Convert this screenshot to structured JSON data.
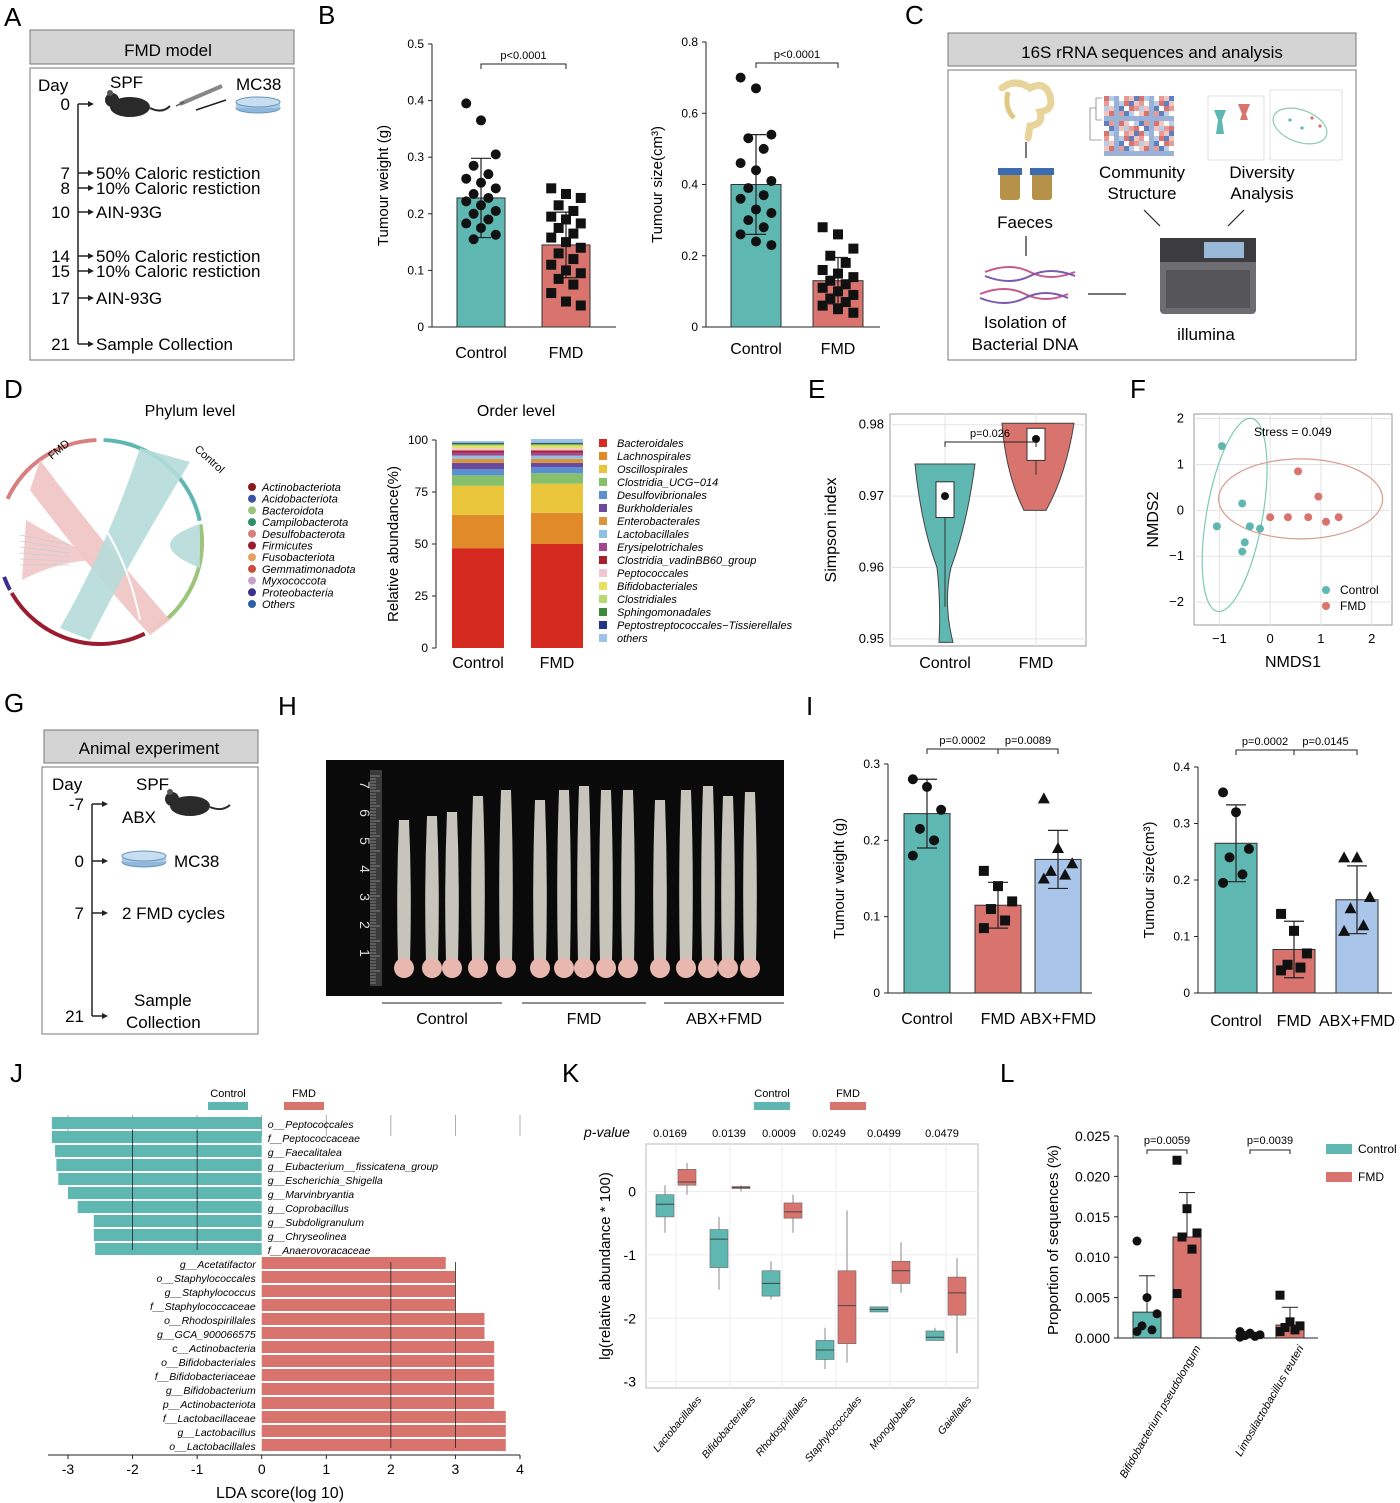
{
  "panel_letters": [
    "A",
    "B",
    "C",
    "D",
    "E",
    "F",
    "G",
    "H",
    "I",
    "J",
    "K",
    "L"
  ],
  "colors": {
    "control": "#5fb7b2",
    "fmd": "#d9736e",
    "abx": "#a9c6ea",
    "header_bg": "#d4d4d4"
  },
  "panelA": {
    "header": "FMD model",
    "day_label": "Day",
    "spf": "SPF",
    "mc38": "MC38",
    "steps": [
      {
        "day": "0",
        "text": ""
      },
      {
        "day": "7",
        "text": "50% Caloric restiction"
      },
      {
        "day": "8",
        "text": "10% Caloric restiction"
      },
      {
        "day": "10",
        "text": "AIN-93G"
      },
      {
        "day": "14",
        "text": "50% Caloric restiction"
      },
      {
        "day": "15",
        "text": "10% Caloric restiction"
      },
      {
        "day": "17",
        "text": "AIN-93G"
      },
      {
        "day": "21",
        "text": "Sample Collection"
      }
    ]
  },
  "panelC": {
    "header": "16S rRNA sequences and analysis",
    "faeces": "Faeces",
    "isolation": [
      "Isolation of",
      "Bacterial DNA"
    ],
    "community": [
      "Community",
      "Structure"
    ],
    "diversity": [
      "Diversity",
      "Analysis"
    ],
    "illumina": "illumina"
  },
  "panelD": {
    "phylum_title": "Phylum level",
    "order_title": "Order level",
    "chord_fmd": "FMD",
    "chord_control": "Control",
    "phylum_legend": [
      {
        "name": "Actinobacteriota",
        "color": "#8b1a1a"
      },
      {
        "name": "Acidobacteriota",
        "color": "#3b4ea8"
      },
      {
        "name": "Bacteroidota",
        "color": "#9cc47a"
      },
      {
        "name": "Campilobacterota",
        "color": "#2f8f6a"
      },
      {
        "name": "Desulfobacterota",
        "color": "#d88080"
      },
      {
        "name": "Firmicutes",
        "color": "#9b1c2e"
      },
      {
        "name": "Fusobacteriota",
        "color": "#e3a060"
      },
      {
        "name": "Gemmatimonadota",
        "color": "#c94e3c"
      },
      {
        "name": "Myxococcota",
        "color": "#c9a0c9"
      },
      {
        "name": "Proteobacteria",
        "color": "#3b2f8f"
      },
      {
        "name": "Others",
        "color": "#2d5fa6"
      }
    ],
    "order_legend": [
      {
        "name": "Bacteroidales",
        "color": "#d42a1f"
      },
      {
        "name": "Lachnospirales",
        "color": "#e08a2a"
      },
      {
        "name": "Oscillospirales",
        "color": "#e8c53a"
      },
      {
        "name": "Clostridia_UCG−014",
        "color": "#86c06a"
      },
      {
        "name": "Desulfovibrionales",
        "color": "#5a8fd0"
      },
      {
        "name": "Burkholderiales",
        "color": "#6a4a9e"
      },
      {
        "name": "Enterobacterales",
        "color": "#d9953a"
      },
      {
        "name": "Lactobacillales",
        "color": "#8fc0e8"
      },
      {
        "name": "Erysipelotrichales",
        "color": "#a4488e"
      },
      {
        "name": "Clostridia_vadinBB60_group",
        "color": "#a8222e"
      },
      {
        "name": "Peptococcales",
        "color": "#f0c6d0"
      },
      {
        "name": "Bifidobacteriales",
        "color": "#e8e060"
      },
      {
        "name": "Clostridiales",
        "color": "#b8d870"
      },
      {
        "name": "Sphingomonadales",
        "color": "#3f8a3a"
      },
      {
        "name": "Peptostreptococcales−Tissierellales",
        "color": "#22348a"
      },
      {
        "name": "others",
        "color": "#9cc4e8"
      }
    ]
  },
  "panelG": {
    "header": "Animal experiment",
    "day_label": "Day",
    "spf": "SPF",
    "steps": [
      {
        "day": "-7",
        "text": "ABX"
      },
      {
        "day": "0",
        "text": "MC38"
      },
      {
        "day": "7",
        "text": "2 FMD cycles"
      },
      {
        "day": "21",
        "text": "Sample"
      }
    ],
    "collection": "Collection"
  },
  "panelH": {
    "groups": [
      "Control",
      "FMD",
      "ABX+FMD"
    ],
    "ruler": [
      "7",
      "6",
      "5",
      "4",
      "3",
      "2",
      "1"
    ]
  },
  "chart_data": [
    {
      "id": "B-weight",
      "type": "bar",
      "categories": [
        "Control",
        "FMD"
      ],
      "values": [
        0.228,
        0.145
      ],
      "sd": [
        0.07,
        0.058
      ],
      "ylabel": "Tumour weight (g)",
      "ylim": [
        0,
        0.5
      ],
      "yticks": [
        "0",
        "0.1",
        "0.2",
        "0.3",
        "0.4",
        "0.5"
      ],
      "pvalues": [
        "p<0.0001"
      ],
      "points": [
        [
          0.395,
          0.365,
          0.305,
          0.285,
          0.27,
          0.262,
          0.255,
          0.245,
          0.235,
          0.228,
          0.222,
          0.215,
          0.205,
          0.2,
          0.19,
          0.183,
          0.175,
          0.163,
          0.155
        ],
        [
          0.245,
          0.235,
          0.228,
          0.215,
          0.205,
          0.195,
          0.19,
          0.183,
          0.175,
          0.165,
          0.158,
          0.15,
          0.14,
          0.13,
          0.12,
          0.11,
          0.1,
          0.095,
          0.085,
          0.075,
          0.06,
          0.045,
          0.038
        ]
      ]
    },
    {
      "id": "B-size",
      "type": "bar",
      "categories": [
        "Control",
        "FMD"
      ],
      "values": [
        0.4,
        0.13
      ],
      "sd": [
        0.14,
        0.065
      ],
      "ylabel": "Tumour size(cm³)",
      "ylim": [
        0,
        0.8
      ],
      "yticks": [
        "0",
        "0.2",
        "0.4",
        "0.6",
        "0.8"
      ],
      "pvalues": [
        "p<0.0001"
      ],
      "points": [
        [
          0.7,
          0.67,
          0.54,
          0.53,
          0.5,
          0.46,
          0.44,
          0.41,
          0.39,
          0.37,
          0.36,
          0.33,
          0.32,
          0.3,
          0.28,
          0.26,
          0.24,
          0.23
        ],
        [
          0.28,
          0.26,
          0.22,
          0.2,
          0.18,
          0.16,
          0.15,
          0.14,
          0.13,
          0.12,
          0.11,
          0.1,
          0.09,
          0.08,
          0.07,
          0.06,
          0.05,
          0.04
        ]
      ]
    },
    {
      "id": "D-order",
      "type": "bar",
      "stacked": true,
      "categories": [
        "Control",
        "FMD"
      ],
      "ylabel": "Relative abundance(%)",
      "ylim": [
        0,
        100
      ],
      "yticks": [
        "0",
        "25",
        "50",
        "75",
        "100"
      ],
      "series_values": [
        [
          48,
          50
        ],
        [
          16,
          15
        ],
        [
          14,
          14
        ],
        [
          5,
          5
        ],
        [
          3,
          3
        ],
        [
          3,
          2
        ],
        [
          2,
          2
        ],
        [
          1.5,
          1.5
        ],
        [
          1.5,
          1.5
        ],
        [
          1,
          1
        ],
        [
          1,
          1
        ],
        [
          1,
          1
        ],
        [
          0.8,
          0.8
        ],
        [
          0.5,
          0.5
        ],
        [
          0.4,
          0.4
        ],
        [
          0.8,
          1.8
        ]
      ]
    },
    {
      "id": "E",
      "type": "violin",
      "categories": [
        "Control",
        "FMD"
      ],
      "median": [
        0.97,
        0.978
      ],
      "ylabel": "Simpson index",
      "ylim": [
        0.949,
        0.9815
      ],
      "yticks": [
        "0.95",
        "0.96",
        "0.97",
        "0.98"
      ],
      "pvalues": [
        "p=0.026"
      ],
      "box": [
        [
          0.967,
          0.972
        ],
        [
          0.975,
          0.9795
        ]
      ],
      "range": [
        [
          0.9495,
          0.9745
        ],
        [
          0.968,
          0.98
        ]
      ]
    },
    {
      "id": "F",
      "type": "scatter",
      "xlabel": "NMDS1",
      "ylabel": "NMDS2",
      "xlim": [
        -1.5,
        2.4
      ],
      "ylim": [
        -2.5,
        2.1
      ],
      "xticks": [
        "−1",
        "0",
        "1",
        "2"
      ],
      "yticks": [
        "−2",
        "−1",
        "0",
        "1",
        "2"
      ],
      "annotation": "Stress = 0.049",
      "series": [
        {
          "name": "Control",
          "points": [
            [
              -0.95,
              1.4
            ],
            [
              -0.55,
              0.15
            ],
            [
              -0.4,
              -0.35
            ],
            [
              -0.2,
              -0.4
            ],
            [
              -0.5,
              -0.7
            ],
            [
              -0.55,
              -0.9
            ],
            [
              -1.05,
              -0.35
            ]
          ]
        },
        {
          "name": "FMD",
          "points": [
            [
              0.55,
              0.85
            ],
            [
              0.95,
              0.3
            ],
            [
              0.35,
              -0.15
            ],
            [
              0.75,
              -0.15
            ],
            [
              1.35,
              -0.15
            ],
            [
              1.1,
              -0.25
            ],
            [
              0.0,
              -0.15
            ]
          ]
        }
      ]
    },
    {
      "id": "I-weight",
      "type": "bar",
      "categories": [
        "Control",
        "FMD",
        "ABX+FMD"
      ],
      "values": [
        0.235,
        0.115,
        0.175
      ],
      "sd": [
        0.045,
        0.03,
        0.038
      ],
      "ylabel": "Tumour weight (g)",
      "ylim": [
        0,
        0.3
      ],
      "yticks": [
        "0",
        "0.1",
        "0.2",
        "0.3"
      ],
      "pvalues": [
        "p=0.0002",
        "p=0.0089"
      ],
      "points": [
        [
          0.28,
          0.27,
          0.24,
          0.215,
          0.2,
          0.18
        ],
        [
          0.16,
          0.14,
          0.12,
          0.11,
          0.095,
          0.085
        ],
        [
          0.255,
          0.19,
          0.17,
          0.16,
          0.155,
          0.15
        ]
      ]
    },
    {
      "id": "I-size",
      "type": "bar",
      "categories": [
        "Control",
        "FMD",
        "ABX+FMD"
      ],
      "values": [
        0.265,
        0.077,
        0.165
      ],
      "sd": [
        0.068,
        0.05,
        0.06
      ],
      "ylabel": "Tumour size(cm³)",
      "ylim": [
        0,
        0.4
      ],
      "yticks": [
        "0",
        "0.1",
        "0.2",
        "0.3",
        "0.4"
      ],
      "pvalues": [
        "p=0.0002",
        "p=0.0145"
      ],
      "points": [
        [
          0.355,
          0.32,
          0.255,
          0.24,
          0.21,
          0.195
        ],
        [
          0.14,
          0.11,
          0.07,
          0.05,
          0.045,
          0.04
        ],
        [
          0.24,
          0.24,
          0.17,
          0.15,
          0.12,
          0.11
        ]
      ]
    },
    {
      "id": "J",
      "type": "bar",
      "orientation": "horizontal",
      "xlabel": "LDA score(log 10)",
      "xlim": [
        -3.3,
        4
      ],
      "xticks": [
        "-3",
        "-2",
        "-1",
        "0",
        "1",
        "2",
        "3",
        "4"
      ],
      "legend": [
        "Control",
        "FMD"
      ],
      "labels": [
        "o__Peptococcales",
        "f__Peptococcaceae",
        "g__Faecalitalea",
        "g__Eubacterium__fissicatena_group",
        "g__Escherichia_Shigella",
        "g__Marvinbryantia",
        "g__Coprobacillus",
        "g__Subdoligranulum",
        "g__Chryseolinea",
        "f__Anaerovoracaceae",
        "g__Acetatifactor",
        "o__Staphylococcales",
        "g__Staphylococcus",
        "f__Staphylococcaceae",
        "o__Rhodospirillales",
        "g__GCA_900066575",
        "c__Actinobacteria",
        "o__Bifidobacteriales",
        "f__Bifidobacteriaceae",
        "g__Bifidobacterium",
        "p__Actinobacteriota",
        "f__Lactobacillaceae",
        "g__Lactobacillus",
        "o__Lactobacillales"
      ],
      "values": [
        -3.25,
        -3.25,
        -3.2,
        -3.18,
        -3.15,
        -3.0,
        -2.85,
        -2.6,
        -2.6,
        -2.58,
        2.85,
        3.0,
        3.0,
        3.0,
        3.45,
        3.45,
        3.6,
        3.6,
        3.6,
        3.6,
        3.6,
        3.78,
        3.78,
        3.78
      ]
    },
    {
      "id": "K",
      "type": "box",
      "ylabel": "lg(relative abundance * 100)",
      "ylim": [
        -3.1,
        0.75
      ],
      "yticks": [
        "-3",
        "-2",
        "-1",
        "0"
      ],
      "legend": [
        "Control",
        "FMD"
      ],
      "pvalue_label": "p-value",
      "categories": [
        "Lactobacillales",
        "Bifidobacteriales",
        "Rhodospirillales",
        "Staphylococcales",
        "Monoglobales",
        "Gaiellales"
      ],
      "pvalues": [
        "0.0169",
        "0.0139",
        "0.0009",
        "0.0249",
        "0.0499",
        "0.0479"
      ],
      "series": [
        {
          "name": "Control",
          "boxes": [
            [
              -0.65,
              -0.4,
              -0.2,
              -0.05,
              0.1
            ],
            [
              -1.55,
              -1.2,
              -0.75,
              -0.6,
              -0.4
            ],
            [
              -1.7,
              -1.65,
              -1.45,
              -1.25,
              -1.1
            ],
            [
              -2.8,
              -2.65,
              -2.5,
              -2.35,
              -2.15
            ],
            [
              -1.9,
              -1.9,
              -1.86,
              -1.82,
              -1.82
            ],
            [
              -2.35,
              -2.35,
              -2.3,
              -2.2,
              -2.15
            ]
          ]
        },
        {
          "name": "FMD",
          "boxes": [
            [
              -0.05,
              0.1,
              0.15,
              0.35,
              0.45
            ],
            [
              0.0,
              0.05,
              0.06,
              0.08,
              0.1
            ],
            [
              -0.65,
              -0.42,
              -0.32,
              -0.18,
              -0.05
            ],
            [
              -2.7,
              -2.4,
              -1.8,
              -1.25,
              -0.3
            ],
            [
              -1.6,
              -1.45,
              -1.25,
              -1.1,
              -0.8
            ],
            [
              -2.55,
              -1.95,
              -1.6,
              -1.35,
              -1.05
            ]
          ]
        }
      ]
    },
    {
      "id": "L",
      "type": "bar",
      "categories": [
        "Bifidobacterium pseudolongum",
        "Limosilactobacillus reuteri"
      ],
      "ylabel": "Proportion of sequences (%)",
      "ylim": [
        0,
        0.025
      ],
      "yticks": [
        "0.000",
        "0.005",
        "0.010",
        "0.015",
        "0.020",
        "0.025"
      ],
      "legend": [
        "Control",
        "FMD"
      ],
      "pvalues": [
        "p=0.0059",
        "p=0.0039"
      ],
      "series": [
        {
          "name": "Control",
          "values": [
            0.0032,
            0.0003
          ],
          "sd": [
            0.0045,
            0.0004
          ],
          "points": [
            [
              0.012,
              0.005,
              0.003,
              0.0015,
              0.001,
              0.0008
            ],
            [
              0.0008,
              0.0006,
              0.0004,
              0.0003,
              0.0002,
              0.0001
            ]
          ]
        },
        {
          "name": "FMD",
          "values": [
            0.0125,
            0.0016
          ],
          "sd": [
            0.0055,
            0.0022
          ],
          "points": [
            [
              0.022,
              0.016,
              0.013,
              0.0125,
              0.011,
              0.0055
            ],
            [
              0.0053,
              0.002,
              0.0015,
              0.0013,
              0.001,
              0.0008
            ]
          ]
        }
      ]
    }
  ]
}
